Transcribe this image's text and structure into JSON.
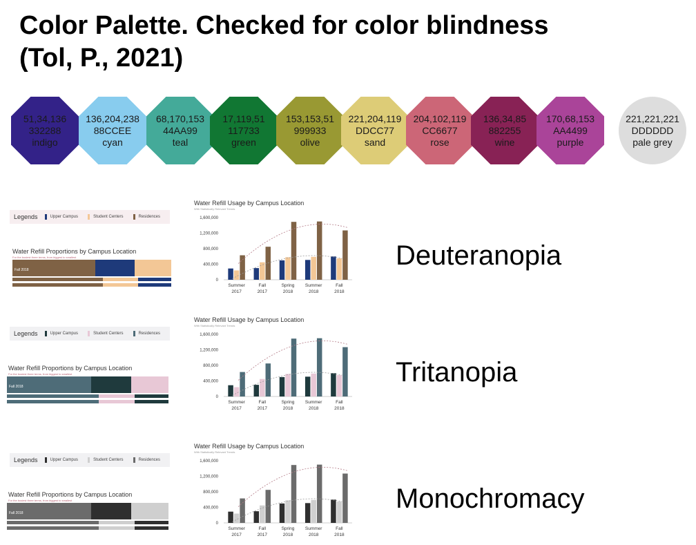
{
  "title": {
    "line1": "Color Palette. Checked for color blindness",
    "line2": "(Tol, P., 2021)"
  },
  "palette": [
    {
      "rgb": "51,34,136",
      "hex": "332288",
      "name": "indigo",
      "color": "#332288"
    },
    {
      "rgb": "136,204,238",
      "hex": "88CCEE",
      "name": "cyan",
      "color": "#88CCEE"
    },
    {
      "rgb": "68,170,153",
      "hex": "44AA99",
      "name": "teal",
      "color": "#44AA99"
    },
    {
      "rgb": "17,119,51",
      "hex": "117733",
      "name": "green",
      "color": "#117733"
    },
    {
      "rgb": "153,153,51",
      "hex": "999933",
      "name": "olive",
      "color": "#999933"
    },
    {
      "rgb": "221,204,119",
      "hex": "DDCC77",
      "name": "sand",
      "color": "#DDCC77"
    },
    {
      "rgb": "204,102,119",
      "hex": "CC6677",
      "name": "rose",
      "color": "#CC6677"
    },
    {
      "rgb": "136,34,85",
      "hex": "882255",
      "name": "wine",
      "color": "#882255"
    },
    {
      "rgb": "170,68,153",
      "hex": "AA4499",
      "name": "purple",
      "color": "#AA4499"
    },
    {
      "rgb": "221,221,221",
      "hex": "DDDDDD",
      "name": "pale grey",
      "color": "#DDDDDD"
    }
  ],
  "legend": {
    "title": "Legends",
    "items": [
      "Upper Campus",
      "Student Centers",
      "Residences"
    ]
  },
  "proportions": {
    "title": "Water Refill Proportions by Campus Location",
    "subtitle": "For the busiest three terms, from biggest to smallest",
    "bar_label": "Fall 2018"
  },
  "chart_data": {
    "type": "bar",
    "title": "Water Refill Usage by Campus Location",
    "subtitle": "With Statistically Relevant Trends",
    "categories": [
      [
        "Summer",
        "2017"
      ],
      [
        "Fall",
        "2017"
      ],
      [
        "Spring",
        "2018"
      ],
      [
        "Summer",
        "2018"
      ],
      [
        "Fall",
        "2018"
      ]
    ],
    "series": [
      {
        "name": "Upper Campus",
        "values": [
          290000,
          300000,
          500000,
          510000,
          600000
        ]
      },
      {
        "name": "Student Centers",
        "values": [
          240000,
          450000,
          580000,
          590000,
          550000
        ]
      },
      {
        "name": "Residences",
        "values": [
          630000,
          850000,
          1490000,
          1500000,
          1270000
        ]
      }
    ],
    "yticks": [
      "0",
      "400,000",
      "800,000",
      "1,200,000",
      "1,600,000"
    ],
    "ylim": [
      0,
      1600000
    ]
  },
  "panels": [
    {
      "name": "Deuteranopia",
      "colors": [
        "#1e3a7a",
        "#f3c796",
        "#7f6245"
      ]
    },
    {
      "name": "Tritanopia",
      "colors": [
        "#1f3a3d",
        "#e8c8d6",
        "#4e6c78"
      ]
    },
    {
      "name": "Monochromacy",
      "colors": [
        "#2f2f2f",
        "#cfcfcf",
        "#6b6b6b"
      ]
    }
  ]
}
